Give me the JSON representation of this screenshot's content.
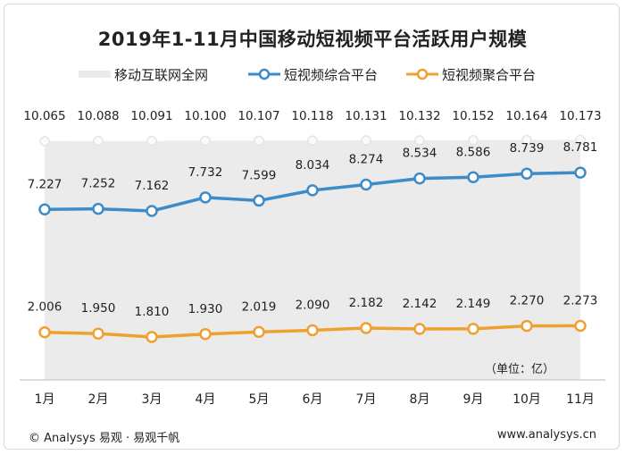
{
  "title": "2019年1-11月中国移动短视频平台活跃用户规模",
  "unit_label": "（单位：亿）",
  "footer": {
    "left": "© Analysys 易观 · 易观千帆",
    "right": "www.analysys.cn"
  },
  "colors": {
    "total": "#ebebeb",
    "comprehensive": "#3d8bc7",
    "aggregate": "#f0a030"
  },
  "chart_data": {
    "type": "line",
    "title": "2019年1-11月中国移动短视频平台活跃用户规模",
    "xlabel": "",
    "ylabel": "",
    "unit": "亿",
    "categories": [
      "1月",
      "2月",
      "3月",
      "4月",
      "5月",
      "6月",
      "7月",
      "8月",
      "9月",
      "10月",
      "11月"
    ],
    "legend_position": "top",
    "series": [
      {
        "name": "移动互联网全网",
        "type": "area",
        "values": [
          10.065,
          10.088,
          10.091,
          10.1,
          10.107,
          10.118,
          10.131,
          10.132,
          10.152,
          10.164,
          10.173
        ],
        "labels": [
          "10.065",
          "10.088",
          "10.091",
          "10.100",
          "10.107",
          "10.118",
          "10.131",
          "10.132",
          "10.152",
          "10.164",
          "10.173"
        ]
      },
      {
        "name": "短视频综合平台",
        "type": "line",
        "values": [
          7.227,
          7.252,
          7.162,
          7.732,
          7.599,
          8.034,
          8.274,
          8.534,
          8.586,
          8.739,
          8.781
        ],
        "labels": [
          "7.227",
          "7.252",
          "7.162",
          "7.732",
          "7.599",
          "8.034",
          "8.274",
          "8.534",
          "8.586",
          "8.739",
          "8.781"
        ]
      },
      {
        "name": "短视频聚合平台",
        "type": "line",
        "values": [
          2.006,
          1.95,
          1.81,
          1.93,
          2.019,
          2.09,
          2.182,
          2.142,
          2.149,
          2.27,
          2.273
        ],
        "labels": [
          "2.006",
          "1.950",
          "1.810",
          "1.930",
          "2.019",
          "2.090",
          "2.182",
          "2.142",
          "2.149",
          "2.270",
          "2.273"
        ]
      }
    ]
  }
}
